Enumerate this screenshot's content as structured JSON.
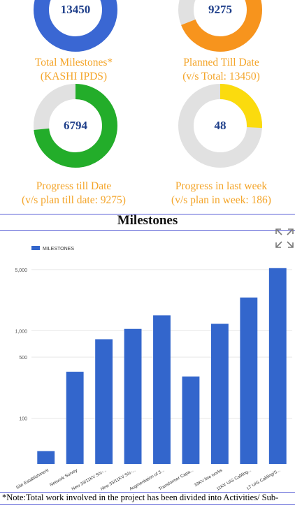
{
  "cards": [
    {
      "value": "13450",
      "caption_line1": "Total Milestones*",
      "caption_line2": "(KASHI IPDS)",
      "fraction": 1.0,
      "color": "#3a67d3"
    },
    {
      "value": "9275",
      "caption_line1": "Planned Till Date",
      "caption_line2": "(v/s Total: 13450)",
      "fraction": 0.6896,
      "color": "#f7941d"
    },
    {
      "value": "6794",
      "caption_line1": "Progress till Date",
      "caption_line2": "(v/s plan till date: 9275)",
      "fraction": 0.7325,
      "color": "#23ad2a"
    },
    {
      "value": "48",
      "caption_line1": "Progress in last week",
      "caption_line2": "(v/s plan in week: 186)",
      "fraction": 0.258,
      "color": "#fbdb0e"
    }
  ],
  "section_title": "Milestones",
  "note": "*Note:Total work involved in the project has been divided into Activities/ Sub-",
  "icons": {
    "expand": "expand-icon"
  },
  "colors": {
    "track": "#e1e1e1",
    "value_text": "#1f3f8a",
    "caption": "#f4a52a",
    "bar": "#3366cc",
    "rule": "#5a5fd6"
  },
  "chart_data": {
    "type": "bar",
    "scale": "log",
    "legend": "MILESTONES",
    "legend_position": "top-left",
    "categories": [
      "Site Establishment",
      "Network Survey",
      "New 33/11KV S/s-...",
      "New 33/11KV S/s-...",
      "Augmentation of 3...",
      "Transformer Capa...",
      "33KV line works",
      "11KV U/G Cabling...",
      "LT U/G Cabling/S..."
    ],
    "series": [
      {
        "name": "MILESTONES",
        "values": [
          42,
          340,
          800,
          1050,
          1500,
          300,
          1200,
          2400,
          5200
        ]
      }
    ],
    "yticks": [
      {
        "value": 100,
        "label": "100"
      },
      {
        "value": 500,
        "label": "500"
      },
      {
        "value": 1000,
        "label": "1,000"
      },
      {
        "value": 5000,
        "label": "5,000"
      }
    ],
    "grid": true
  }
}
